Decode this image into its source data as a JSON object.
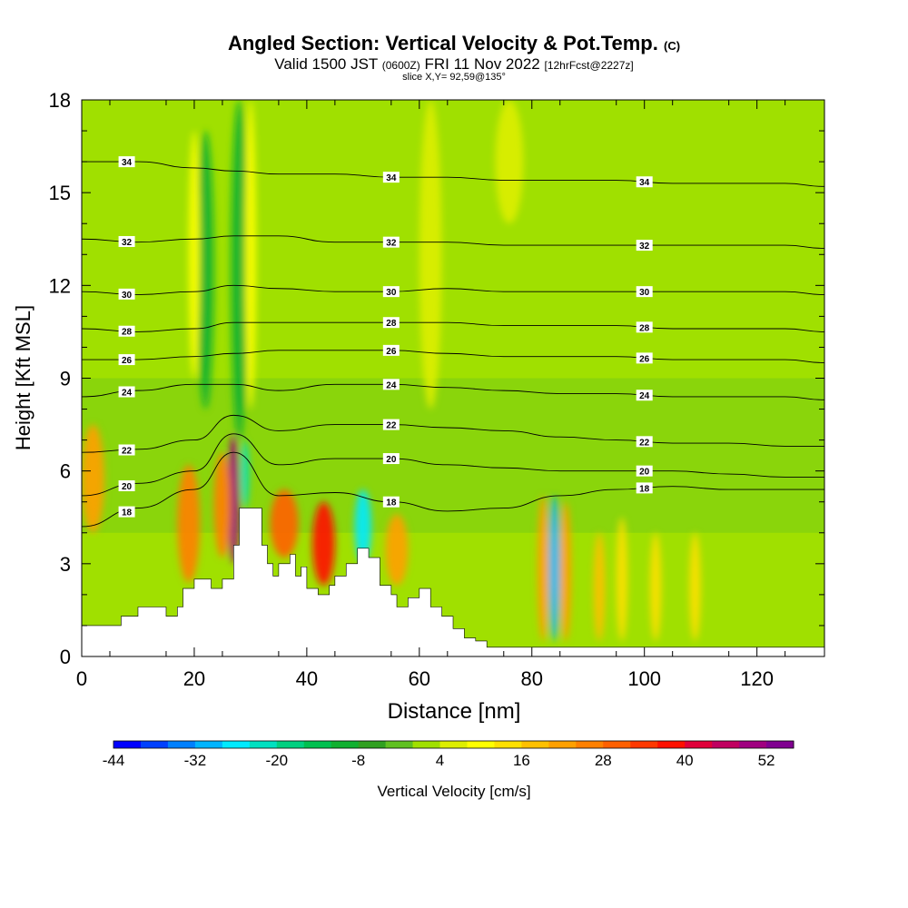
{
  "title": {
    "main": "Angled Section: Vertical Velocity & Pot.Temp.",
    "main_unit": "(C)",
    "valid_prefix": "Valid 1500 JST",
    "valid_z": "(0600Z)",
    "valid_date": "FRI 11 Nov 2022",
    "valid_fcst": "[12hrFcst@2227z]",
    "slice": "slice X,Y= 92,59@135°"
  },
  "chart_data": {
    "type": "heatmap",
    "xlabel": "Distance [nm]",
    "ylabel": "Height [Kft MSL]",
    "xlim": [
      0,
      132
    ],
    "ylim": [
      0,
      18
    ],
    "x_ticks": [
      0,
      20,
      40,
      60,
      80,
      100,
      120
    ],
    "y_ticks": [
      0,
      3,
      6,
      9,
      12,
      15,
      18
    ],
    "background_value_range_cm_s": [
      -4,
      4
    ],
    "colorbar": {
      "label": "Vertical Velocity [cm/s]",
      "tick_labels": [
        "-44",
        "-32",
        "-20",
        "-8",
        "4",
        "16",
        "28",
        "40",
        "52"
      ],
      "levels": [
        -44,
        -40,
        -36,
        -32,
        -28,
        -24,
        -20,
        -16,
        -12,
        -8,
        -4,
        0,
        4,
        8,
        12,
        16,
        20,
        24,
        28,
        32,
        36,
        40,
        44,
        48,
        52,
        56
      ],
      "colors": [
        "#0000ff",
        "#0040ff",
        "#0080ff",
        "#00b4ff",
        "#00eaff",
        "#00e0c0",
        "#00d080",
        "#00c050",
        "#10b030",
        "#30a020",
        "#60c020",
        "#a0e000",
        "#ddee00",
        "#ffff00",
        "#ffe000",
        "#ffc000",
        "#ffa000",
        "#ff8000",
        "#ff6000",
        "#ff3800",
        "#ff1000",
        "#e0003a",
        "#c00060",
        "#a00080",
        "#800090"
      ]
    },
    "features": [
      {
        "x": 27,
        "y": [
          3.0,
          7.2
        ],
        "w": 2,
        "value": 48
      },
      {
        "x": 29,
        "y": [
          4.8,
          7.0
        ],
        "w": 1.5,
        "value": -24
      },
      {
        "x": 25,
        "y": [
          3.2,
          6.6
        ],
        "w": 3,
        "value": 24
      },
      {
        "x": 19,
        "y": [
          2.4,
          6.2
        ],
        "w": 4,
        "value": 24
      },
      {
        "x": 36,
        "y": [
          3.2,
          5.4
        ],
        "w": 5,
        "value": 28
      },
      {
        "x": 43,
        "y": [
          2.3,
          5.0
        ],
        "w": 4,
        "value": 36
      },
      {
        "x": 50,
        "y": [
          3.0,
          5.4
        ],
        "w": 3,
        "value": -26
      },
      {
        "x": 56,
        "y": [
          2.3,
          4.6
        ],
        "w": 4,
        "value": 20
      },
      {
        "x": 84,
        "y": [
          0.5,
          5.2
        ],
        "w": 2,
        "value": -30
      },
      {
        "x": 82,
        "y": [
          0.5,
          5.2
        ],
        "w": 2,
        "value": 20
      },
      {
        "x": 86,
        "y": [
          0.5,
          5.0
        ],
        "w": 2,
        "value": 20
      },
      {
        "x": 92,
        "y": [
          0.5,
          4.0
        ],
        "w": 2,
        "value": 16
      },
      {
        "x": 96,
        "y": [
          0.5,
          4.5
        ],
        "w": 2,
        "value": 12
      },
      {
        "x": 102,
        "y": [
          0.5,
          4.0
        ],
        "w": 2,
        "value": 12
      },
      {
        "x": 109,
        "y": [
          0.5,
          4.0
        ],
        "w": 2,
        "value": 12
      },
      {
        "x": 2,
        "y": [
          4.0,
          7.5
        ],
        "w": 4,
        "value": 20
      },
      {
        "x": 28,
        "y": [
          7.0,
          18.0
        ],
        "w": 3,
        "value": -12
      },
      {
        "x": 22,
        "y": [
          8.0,
          17.0
        ],
        "w": 3,
        "value": -10
      },
      {
        "x": 30,
        "y": [
          8.0,
          18.0
        ],
        "w": 2,
        "value": 10
      },
      {
        "x": 20,
        "y": [
          9.0,
          17.0
        ],
        "w": 2,
        "value": 8
      },
      {
        "x": 76,
        "y": [
          14.0,
          18.0
        ],
        "w": 5,
        "value": 6
      },
      {
        "x": 62,
        "y": [
          8.0,
          18.0
        ],
        "w": 4,
        "value": 5
      }
    ],
    "terrain": {
      "x": [
        0,
        5,
        7,
        8,
        10,
        13,
        15,
        17,
        18,
        20,
        23,
        25,
        27,
        28,
        31,
        32,
        33,
        34,
        35,
        37,
        38,
        39,
        40,
        42,
        44,
        45,
        47,
        49,
        51,
        53,
        55,
        56,
        58,
        60,
        62,
        64,
        66,
        68,
        70,
        72,
        100,
        132
      ],
      "y": [
        1.0,
        1.0,
        1.3,
        1.3,
        1.6,
        1.6,
        1.3,
        1.6,
        2.2,
        2.5,
        2.2,
        2.5,
        3.6,
        4.8,
        4.8,
        3.6,
        3.0,
        2.6,
        3.0,
        3.3,
        2.6,
        2.9,
        2.2,
        2.0,
        2.3,
        2.6,
        3.0,
        3.5,
        3.2,
        2.3,
        2.0,
        1.6,
        1.9,
        2.2,
        1.6,
        1.3,
        0.9,
        0.6,
        0.5,
        0.3,
        0.3,
        0.3
      ]
    },
    "isentropes": [
      {
        "label": "34",
        "y": [
          16.0,
          16.0,
          15.8,
          15.7,
          15.6,
          15.6,
          15.5,
          15.5,
          15.4,
          15.4,
          15.4,
          15.3,
          15.3,
          15.3,
          15.2
        ]
      },
      {
        "label": "32",
        "y": [
          13.5,
          13.4,
          13.5,
          13.6,
          13.6,
          13.4,
          13.4,
          13.4,
          13.3,
          13.3,
          13.3,
          13.3,
          13.3,
          13.3,
          13.2
        ]
      },
      {
        "label": "30",
        "y": [
          11.8,
          11.7,
          11.8,
          12.0,
          11.9,
          11.8,
          11.8,
          11.9,
          11.8,
          11.8,
          11.8,
          11.8,
          11.8,
          11.8,
          11.7
        ]
      },
      {
        "label": "28",
        "y": [
          10.6,
          10.5,
          10.6,
          10.8,
          10.8,
          10.8,
          10.8,
          10.8,
          10.7,
          10.7,
          10.7,
          10.6,
          10.6,
          10.6,
          10.5
        ]
      },
      {
        "label": "26",
        "y": [
          9.6,
          9.6,
          9.7,
          9.8,
          9.9,
          9.9,
          9.9,
          9.8,
          9.7,
          9.7,
          9.7,
          9.6,
          9.6,
          9.6,
          9.5
        ]
      },
      {
        "label": "24",
        "y": [
          8.4,
          8.6,
          8.8,
          8.8,
          8.6,
          8.8,
          8.8,
          8.7,
          8.6,
          8.5,
          8.5,
          8.4,
          8.4,
          8.4,
          8.3
        ]
      },
      {
        "label": "22",
        "y": [
          6.6,
          6.7,
          7.0,
          7.8,
          7.3,
          7.5,
          7.5,
          7.4,
          7.3,
          7.1,
          7.0,
          6.9,
          6.9,
          6.8,
          6.8
        ]
      },
      {
        "label": "20",
        "y": [
          5.2,
          5.6,
          6.0,
          7.2,
          6.2,
          6.4,
          6.4,
          6.2,
          6.1,
          6.0,
          6.0,
          6.0,
          5.9,
          5.8,
          5.8
        ]
      },
      {
        "label": "18",
        "y": [
          4.2,
          4.8,
          5.4,
          6.6,
          5.2,
          5.3,
          5.0,
          4.7,
          4.8,
          5.2,
          5.4,
          5.5,
          5.4,
          5.4,
          5.4
        ]
      }
    ],
    "isentrope_x": [
      0,
      10,
      20,
      27,
      35,
      45,
      55,
      65,
      75,
      85,
      95,
      105,
      115,
      125,
      132
    ]
  }
}
